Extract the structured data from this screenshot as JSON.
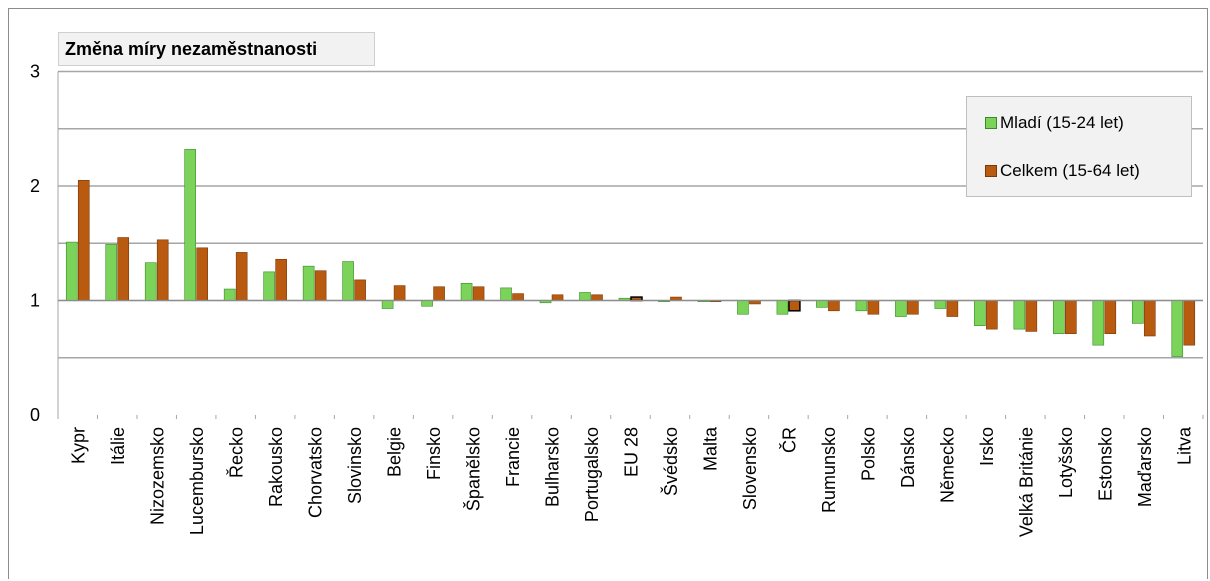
{
  "chart_data": {
    "type": "bar",
    "title": "Změna míry nezaměstnanosti",
    "xlabel": "",
    "ylabel": "",
    "ylim": [
      0,
      3
    ],
    "yticks": [
      "0",
      "1",
      "2",
      "3"
    ],
    "grid": true,
    "legend_position": "right",
    "categories": [
      "Kypr",
      "Itálie",
      "Nizozemsko",
      "Lucembursko",
      "Řecko",
      "Rakousko",
      "Chorvatsko",
      "Slovinsko",
      "Belgie",
      "Finsko",
      "Španělsko",
      "Francie",
      "Bulharsko",
      "Portugalsko",
      "EU 28",
      "Švédsko",
      "Malta",
      "Slovensko",
      "ČR",
      "Rumunsko",
      "Polsko",
      "Dánsko",
      "Německo",
      "Irsko",
      "Velká Británie",
      "Lotyšsko",
      "Estonsko",
      "Maďarsko",
      "Litva"
    ],
    "series": [
      {
        "name": "Mladí (15-24 let)",
        "color": "#7bd35a",
        "values": [
          1.51,
          1.49,
          1.33,
          2.32,
          1.1,
          1.25,
          1.3,
          1.34,
          0.93,
          0.95,
          1.15,
          1.11,
          0.98,
          1.07,
          1.02,
          0.99,
          1.0,
          0.88,
          0.88,
          0.94,
          0.91,
          0.86,
          0.93,
          0.78,
          0.75,
          0.71,
          0.61,
          0.8,
          0.51
        ]
      },
      {
        "name": "Celkem (15-64 let)",
        "color": "#b85a10",
        "values": [
          2.05,
          1.55,
          1.53,
          1.46,
          1.42,
          1.36,
          1.26,
          1.18,
          1.13,
          1.12,
          1.12,
          1.06,
          1.05,
          1.05,
          1.03,
          1.03,
          0.99,
          0.97,
          0.91,
          0.91,
          0.88,
          0.88,
          0.86,
          0.75,
          0.73,
          0.71,
          0.71,
          0.69,
          0.61
        ]
      }
    ]
  }
}
